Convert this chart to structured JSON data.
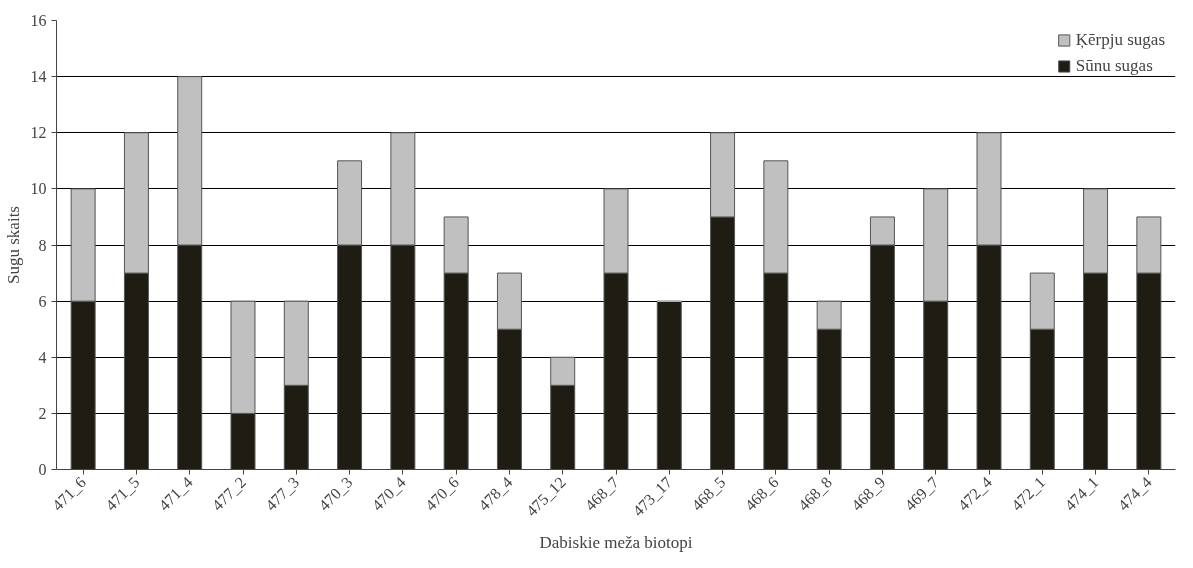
{
  "chart_data": {
    "type": "bar",
    "stacked": true,
    "xlabel": "Dabiskie meža biotopi",
    "ylabel": "Sugu skaits",
    "categories": [
      "471_6",
      "471_5",
      "471_4",
      "477_2",
      "477_3",
      "470_3",
      "470_4",
      "470_6",
      "478_4",
      "475_12",
      "468_7",
      "473_17",
      "468_5",
      "468_6",
      "468_8",
      "468_9",
      "469_7",
      "472_4",
      "472_1",
      "474_1",
      "474_4"
    ],
    "series": [
      {
        "name": "Sūnu sugas",
        "color": "#1f1c14",
        "values": [
          6,
          7,
          8,
          2,
          3,
          8,
          8,
          7,
          5,
          3,
          7,
          6,
          9,
          7,
          5,
          8,
          6,
          8,
          5,
          7,
          7
        ]
      },
      {
        "name": "Ķērpju sugas",
        "color": "#c0c0c0",
        "values": [
          4,
          5,
          6,
          4,
          3,
          3,
          4,
          2,
          2,
          1,
          3,
          0,
          3,
          4,
          1,
          1,
          4,
          4,
          2,
          3,
          2
        ]
      }
    ],
    "ylim": [
      0,
      16
    ],
    "yticks": [
      0,
      2,
      4,
      6,
      8,
      10,
      12,
      14,
      16
    ],
    "grid": "y",
    "legend": "top right"
  }
}
